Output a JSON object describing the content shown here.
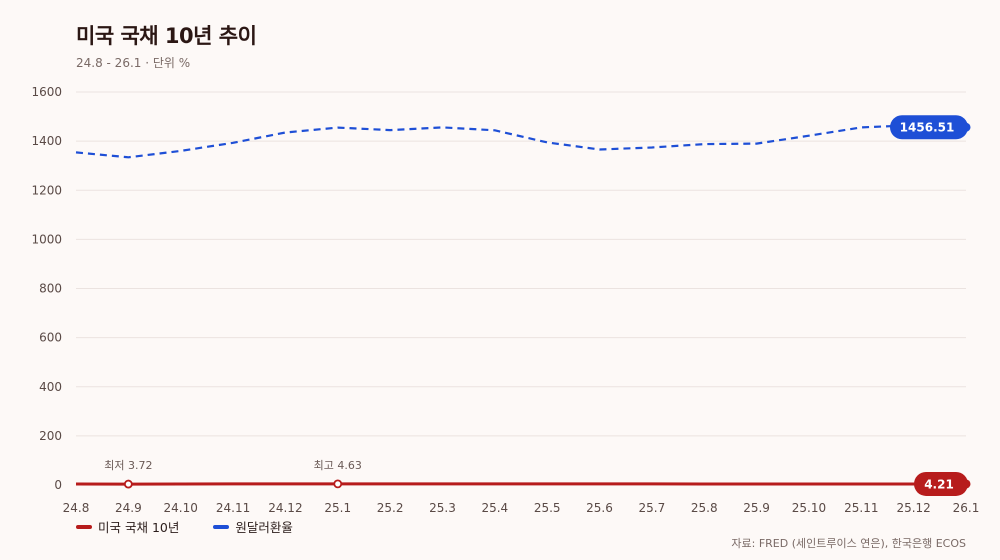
{
  "header": {
    "title": "미국 국채 10년 추이",
    "subtitle": "24.8 - 26.1 · 단위 %"
  },
  "source": "자료: FRED (세인트루이스 연은), 한국은행 ECOS",
  "colors": {
    "treasury": "#b71c1c",
    "fx": "#1e4fd6",
    "grid": "#ebe3e0",
    "background": "#fdf9f7"
  },
  "chart_data": {
    "type": "line",
    "title": "미국 국채 10년 추이",
    "subtitle": "24.8 - 26.1 · 단위 %",
    "xlabel": "",
    "ylabel": "",
    "ylim": [
      0,
      1600
    ],
    "yticks": [
      "0",
      "200",
      "400",
      "600",
      "800",
      "1000",
      "1200",
      "1400",
      "1600"
    ],
    "categories": [
      "24.8",
      "24.9",
      "24.10",
      "24.11",
      "24.12",
      "25.1",
      "25.2",
      "25.3",
      "25.4",
      "25.5",
      "25.6",
      "25.7",
      "25.8",
      "25.9",
      "25.10",
      "25.11",
      "25.12",
      "26.1"
    ],
    "grid": true,
    "legend_position": "bottom-left",
    "series": [
      {
        "name": "미국 국채 10년",
        "style": "solid",
        "color": "#b71c1c",
        "values": [
          3.9,
          3.72,
          4.1,
          4.36,
          4.39,
          4.63,
          4.45,
          4.28,
          4.28,
          4.42,
          4.38,
          4.39,
          4.26,
          4.12,
          4.06,
          4.09,
          4.14,
          4.21
        ]
      },
      {
        "name": "원달러환율",
        "style": "dashed",
        "color": "#1e4fd6",
        "values": [
          1354,
          1334,
          1360,
          1393,
          1435,
          1455,
          1445,
          1456,
          1444,
          1395,
          1366,
          1374,
          1388,
          1390,
          1422,
          1456,
          1465,
          1456.51
        ]
      }
    ],
    "annotations": [
      {
        "series": 0,
        "index": 1,
        "label": "최저 3.72"
      },
      {
        "series": 0,
        "index": 5,
        "label": "최고 4.63"
      }
    ],
    "end_labels": [
      "4.21",
      "1456.51"
    ]
  }
}
